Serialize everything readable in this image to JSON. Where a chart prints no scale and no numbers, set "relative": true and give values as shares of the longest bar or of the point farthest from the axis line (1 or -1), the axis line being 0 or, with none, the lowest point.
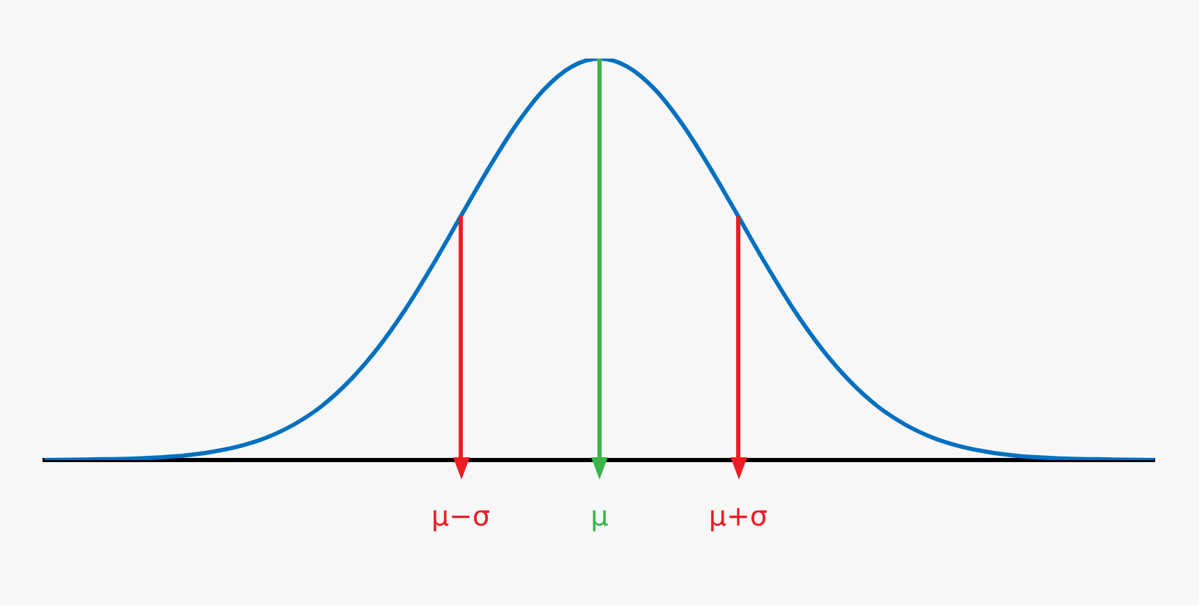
{
  "chart_data": {
    "type": "line",
    "relative": true,
    "categories": [
      null,
      null,
      null,
      null,
      null,
      null,
      null,
      null,
      null,
      null,
      null,
      null,
      null,
      null,
      null,
      "μ−σ",
      null,
      null,
      null,
      null,
      "μ",
      null,
      null,
      null,
      null,
      "μ+σ",
      null,
      null,
      null,
      null,
      null,
      null,
      null,
      null,
      null,
      null,
      null,
      null,
      null,
      null,
      null
    ],
    "series": [
      {
        "color": "#0070c0",
        "values": [
          0.0,
          0.001,
          0.002,
          0.003,
          0.006,
          0.011,
          0.02,
          0.034,
          0.056,
          0.089,
          0.135,
          0.198,
          0.278,
          0.375,
          0.487,
          0.607,
          0.726,
          0.835,
          0.923,
          0.98,
          1,
          0.98,
          0.923,
          0.835,
          0.726,
          0.607,
          0.487,
          0.375,
          0.278,
          0.198,
          0.135,
          0.089,
          0.056,
          0.034,
          0.02,
          0.011,
          0.006,
          0.003,
          0.002,
          0.001,
          0.0
        ]
      }
    ],
    "ref_lines": [
      {
        "axis": "x",
        "value": "μ−σ",
        "color": "#ed1c24"
      },
      {
        "axis": "x",
        "value": "μ",
        "color": "#39b54a"
      },
      {
        "axis": "x",
        "value": "μ+σ",
        "color": "#ed1c24"
      }
    ],
    "grid": false,
    "legend": false
  }
}
